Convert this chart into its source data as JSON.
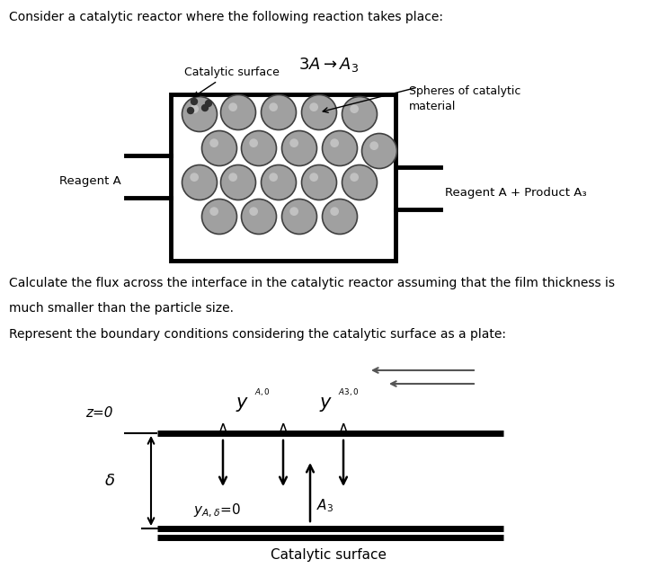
{
  "title_text": "Consider a catalytic reactor where the following reaction takes place:",
  "calc_text1": "Calculate the flux across the interface in the catalytic reactor assuming that the film thickness is",
  "calc_text2": "much smaller than the particle size.",
  "represent_text": "Represent the boundary conditions considering the catalytic surface as a plate:",
  "label_cat_surface_diag": "Catalytic surface",
  "label_spheres": "Spheres of catalytic\nmaterial",
  "label_reagentA": "Reagent A",
  "label_reagentA_product": "Reagent A + Product A₃",
  "label_z0": "z=0",
  "label_delta": "δ",
  "label_cat_bottom": "Catalytic surface",
  "bg_color": "#ffffff",
  "sphere_color": "#a0a0a0",
  "sphere_edge": "#404040",
  "text_color": "#000000",
  "fig_w": 7.32,
  "fig_h": 6.52,
  "dpi": 100
}
